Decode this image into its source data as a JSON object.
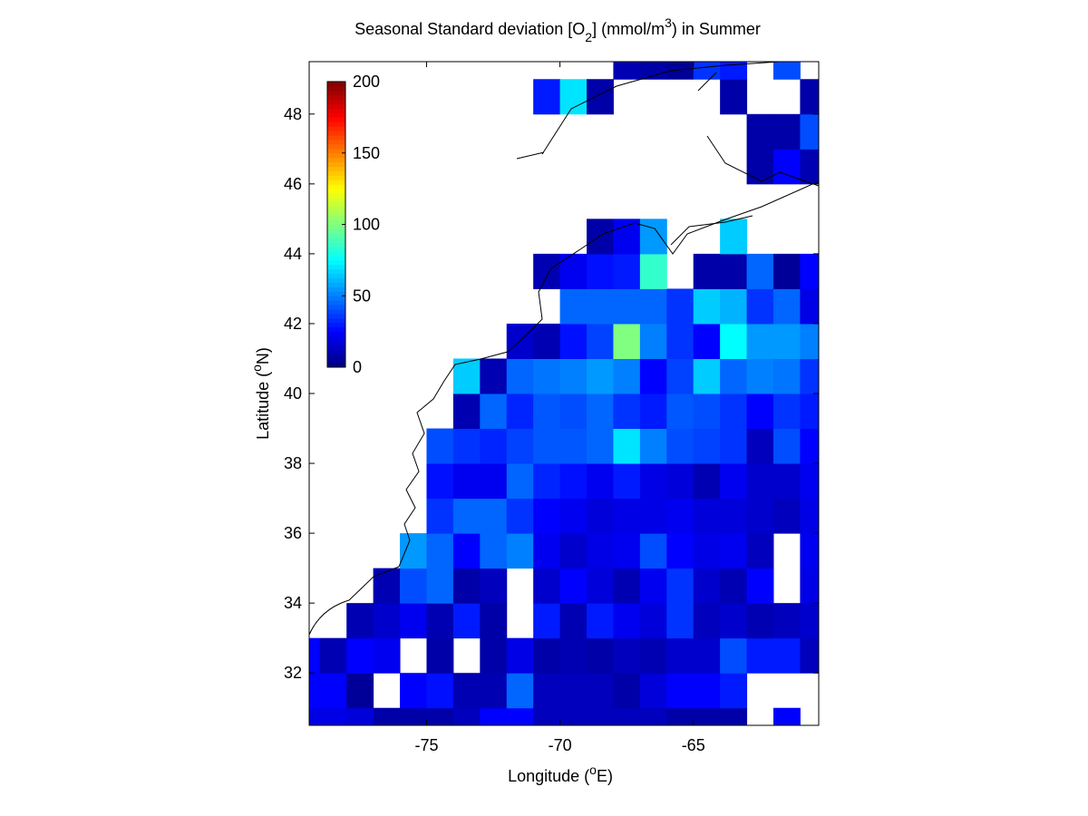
{
  "chart_data": {
    "type": "heatmap",
    "title": [
      "Seasonal Standard deviation [O",
      "2",
      "] (mmol/m",
      "3",
      ") in  Summer"
    ],
    "xlabel": [
      "Longitude (",
      "o",
      "E)"
    ],
    "ylabel": [
      "Latitude (",
      "o",
      "N)"
    ],
    "x": [
      -79.5,
      -78.5,
      -77.5,
      -76.5,
      -75.5,
      -74.5,
      -73.5,
      -72.5,
      -71.5,
      -70.5,
      -69.5,
      -68.5,
      -67.5,
      -66.5,
      -65.5,
      -64.5,
      -63.5,
      -62.5,
      -61.5,
      -60.5
    ],
    "y": [
      30.5,
      31.5,
      32.5,
      33.5,
      34.5,
      35.5,
      36.5,
      37.5,
      38.5,
      39.5,
      40.5,
      41.5,
      42.5,
      43.5,
      44.5,
      45.5,
      46.5,
      47.5,
      48.5,
      49.5
    ],
    "z": [
      [
        20,
        20,
        18,
        8,
        8,
        8,
        12,
        25,
        25,
        12,
        12,
        12,
        12,
        12,
        8,
        8,
        8,
        null,
        25,
        null
      ],
      [
        25,
        25,
        5,
        null,
        25,
        28,
        10,
        10,
        45,
        12,
        12,
        12,
        8,
        18,
        25,
        25,
        30,
        null,
        null,
        null
      ],
      [
        25,
        10,
        25,
        22,
        null,
        8,
        null,
        8,
        20,
        8,
        10,
        8,
        12,
        10,
        15,
        15,
        40,
        30,
        30,
        12
      ],
      [
        null,
        null,
        10,
        15,
        22,
        10,
        30,
        8,
        null,
        30,
        10,
        30,
        22,
        18,
        35,
        12,
        15,
        10,
        12,
        15
      ],
      [
        null,
        null,
        null,
        10,
        40,
        45,
        8,
        12,
        null,
        15,
        25,
        18,
        10,
        22,
        35,
        15,
        10,
        25,
        null,
        20
      ],
      [
        null,
        null,
        null,
        null,
        55,
        45,
        25,
        45,
        50,
        22,
        15,
        20,
        22,
        40,
        25,
        20,
        22,
        12,
        null,
        22
      ],
      [
        null,
        null,
        null,
        null,
        null,
        35,
        45,
        45,
        35,
        25,
        22,
        18,
        20,
        20,
        22,
        18,
        18,
        15,
        12,
        20
      ],
      [
        null,
        null,
        null,
        null,
        null,
        28,
        22,
        22,
        45,
        32,
        28,
        22,
        30,
        20,
        18,
        10,
        22,
        15,
        15,
        22
      ],
      [
        null,
        null,
        null,
        null,
        null,
        40,
        35,
        32,
        38,
        42,
        42,
        45,
        70,
        50,
        40,
        38,
        35,
        12,
        40,
        25
      ],
      [
        null,
        null,
        null,
        null,
        null,
        null,
        10,
        45,
        32,
        42,
        40,
        45,
        35,
        30,
        42,
        40,
        35,
        25,
        35,
        30
      ],
      [
        null,
        null,
        null,
        null,
        null,
        null,
        65,
        10,
        45,
        48,
        50,
        55,
        50,
        25,
        38,
        65,
        45,
        50,
        48,
        35
      ],
      [
        null,
        null,
        null,
        null,
        null,
        null,
        null,
        null,
        15,
        10,
        28,
        38,
        100,
        50,
        35,
        25,
        75,
        55,
        55,
        50
      ],
      [
        null,
        null,
        null,
        null,
        null,
        null,
        null,
        null,
        null,
        null,
        45,
        45,
        45,
        45,
        35,
        65,
        60,
        35,
        45,
        20
      ],
      [
        null,
        null,
        null,
        null,
        null,
        null,
        null,
        null,
        null,
        10,
        22,
        28,
        30,
        85,
        null,
        8,
        8,
        45,
        5,
        25
      ],
      [
        null,
        null,
        null,
        null,
        null,
        null,
        null,
        null,
        null,
        null,
        null,
        8,
        22,
        55,
        null,
        null,
        65,
        null,
        null,
        null
      ],
      [
        null,
        null,
        null,
        null,
        null,
        null,
        null,
        null,
        null,
        null,
        null,
        null,
        null,
        null,
        null,
        null,
        null,
        null,
        null,
        null
      ],
      [
        null,
        null,
        null,
        null,
        null,
        null,
        null,
        null,
        null,
        null,
        null,
        null,
        null,
        null,
        null,
        null,
        null,
        8,
        25,
        10
      ],
      [
        null,
        null,
        null,
        null,
        null,
        null,
        null,
        null,
        null,
        null,
        null,
        null,
        null,
        null,
        null,
        null,
        null,
        8,
        8,
        40
      ],
      [
        null,
        null,
        null,
        null,
        null,
        null,
        null,
        null,
        null,
        30,
        70,
        8,
        null,
        null,
        null,
        null,
        8,
        null,
        null,
        8
      ],
      [
        null,
        null,
        null,
        null,
        null,
        null,
        null,
        null,
        null,
        null,
        null,
        null,
        10,
        8,
        5,
        35,
        30,
        null,
        40,
        null
      ]
    ],
    "xlim": [
      -79.4,
      -60.3
    ],
    "ylim": [
      30.5,
      49.5
    ],
    "xticks": [
      -75,
      -70,
      -65
    ],
    "yticks": [
      32,
      34,
      36,
      38,
      40,
      42,
      44,
      46,
      48
    ],
    "colormap": "jet",
    "clim": [
      0,
      200
    ],
    "cticks": [
      0,
      50,
      100,
      150,
      200
    ]
  }
}
